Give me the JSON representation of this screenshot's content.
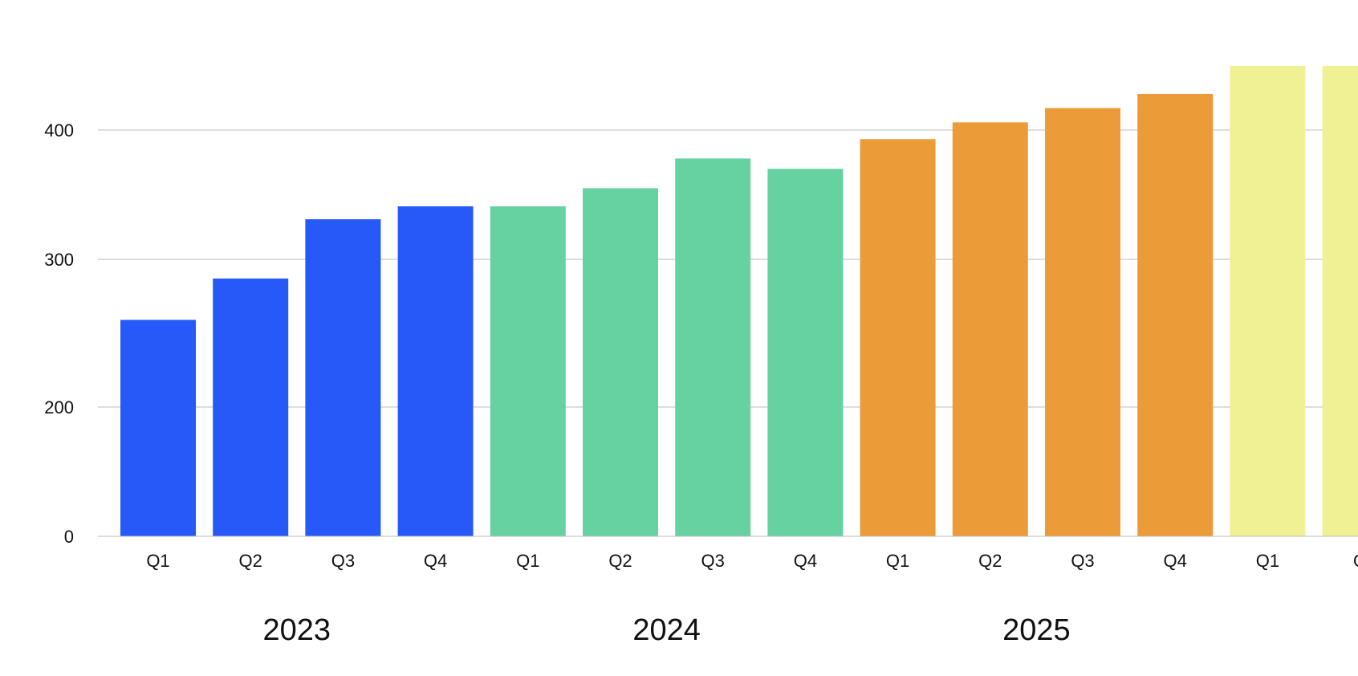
{
  "chart_data": {
    "type": "bar",
    "title": "",
    "xlabel": "",
    "ylabel": "",
    "categories": [
      "Q1",
      "Q2",
      "Q3",
      "Q4",
      "Q1",
      "Q2",
      "Q3",
      "Q4",
      "Q1",
      "Q2",
      "Q3",
      "Q4",
      "Q1",
      "Q"
    ],
    "values": [
      259,
      287,
      331,
      341,
      341,
      355,
      378,
      370,
      393,
      406,
      417,
      428,
      450,
      450
    ],
    "groups": [
      {
        "label": "2023",
        "color": "#2659F7",
        "start": 0,
        "count": 4
      },
      {
        "label": "2024",
        "color": "#67D2A1",
        "start": 4,
        "count": 4
      },
      {
        "label": "2025",
        "color": "#EB9B38",
        "start": 8,
        "count": 4
      },
      {
        "label": "",
        "color": "#F0F094",
        "start": 12,
        "count": 2
      }
    ],
    "y_ticks": [
      {
        "value": 0,
        "label": "0"
      },
      {
        "value": 200,
        "label": "200"
      },
      {
        "value": 300,
        "label": "300"
      },
      {
        "value": 400,
        "label": "400"
      }
    ],
    "ylim": [
      0,
      450
    ],
    "grid": true,
    "legend": "none"
  }
}
